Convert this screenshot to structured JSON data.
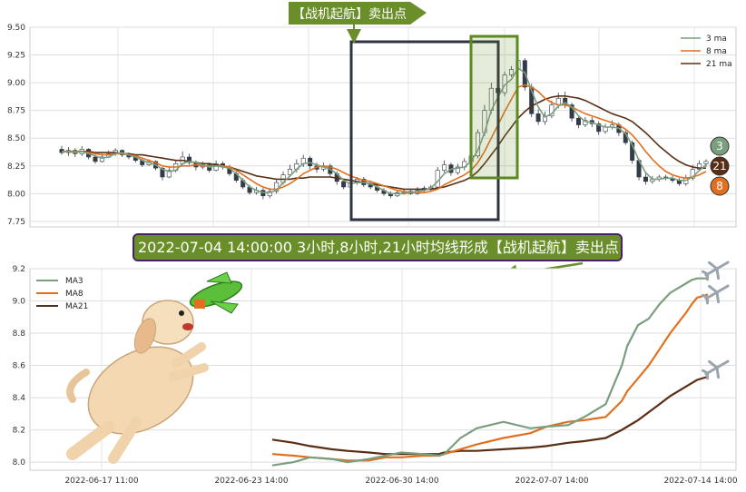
{
  "top_banner": "【战机起航】卖出点",
  "mid_banner": "2022-07-04 14:00:00 3小时,8小时,21小时均线形成【战机起航】卖出点",
  "badges": {
    "ma3": "3",
    "ma21": "21",
    "ma8": "8"
  },
  "colors": {
    "ma3": "#7a9e7e",
    "ma8": "#e07020",
    "ma21": "#5a2e14",
    "banner": "#6a8f2a",
    "up": "#7a9e7e",
    "down": "#333b48"
  },
  "chart_data": [
    {
      "type": "candlestick",
      "ylim": [
        7.7,
        9.5
      ],
      "yticks": [
        "7.75",
        "8.00",
        "8.25",
        "8.50",
        "8.75",
        "9.00",
        "9.25",
        "9.50"
      ],
      "legend": {
        "position": "top-right",
        "entries": [
          "3 ma",
          "8 ma",
          "21 ma"
        ]
      },
      "grid": true,
      "candles": [
        [
          8.4,
          8.37,
          8.43,
          8.35
        ],
        [
          8.37,
          8.39,
          8.42,
          8.34
        ],
        [
          8.39,
          8.36,
          8.41,
          8.33
        ],
        [
          8.36,
          8.4,
          8.43,
          8.34
        ],
        [
          8.4,
          8.33,
          8.41,
          8.31
        ],
        [
          8.33,
          8.29,
          8.35,
          8.27
        ],
        [
          8.29,
          8.33,
          8.36,
          8.28
        ],
        [
          8.33,
          8.36,
          8.39,
          8.32
        ],
        [
          8.36,
          8.39,
          8.41,
          8.34
        ],
        [
          8.39,
          8.35,
          8.4,
          8.33
        ],
        [
          8.35,
          8.33,
          8.37,
          8.31
        ],
        [
          8.33,
          8.3,
          8.34,
          8.28
        ],
        [
          8.3,
          8.26,
          8.32,
          8.24
        ],
        [
          8.26,
          8.29,
          8.31,
          8.25
        ],
        [
          8.29,
          8.23,
          8.3,
          8.21
        ],
        [
          8.23,
          8.15,
          8.24,
          8.12
        ],
        [
          8.15,
          8.21,
          8.24,
          8.14
        ],
        [
          8.21,
          8.27,
          8.3,
          8.19
        ],
        [
          8.27,
          8.33,
          8.38,
          8.25
        ],
        [
          8.33,
          8.28,
          8.36,
          8.26
        ],
        [
          8.28,
          8.24,
          8.3,
          8.21
        ],
        [
          8.24,
          8.26,
          8.29,
          8.22
        ],
        [
          8.26,
          8.21,
          8.28,
          8.19
        ],
        [
          8.21,
          8.27,
          8.3,
          8.2
        ],
        [
          8.27,
          8.24,
          8.29,
          8.22
        ],
        [
          8.24,
          8.18,
          8.26,
          8.16
        ],
        [
          8.18,
          8.12,
          8.2,
          8.1
        ],
        [
          8.12,
          8.06,
          8.14,
          8.04
        ],
        [
          8.06,
          8.01,
          8.08,
          7.99
        ],
        [
          8.01,
          8.03,
          8.06,
          7.99
        ],
        [
          8.03,
          7.98,
          8.05,
          7.95
        ],
        [
          7.98,
          8.02,
          8.05,
          7.96
        ],
        [
          8.02,
          8.1,
          8.13,
          8.0
        ],
        [
          8.1,
          8.17,
          8.2,
          8.08
        ],
        [
          8.17,
          8.22,
          8.26,
          8.15
        ],
        [
          8.22,
          8.27,
          8.31,
          8.19
        ],
        [
          8.27,
          8.32,
          8.35,
          8.24
        ],
        [
          8.32,
          8.25,
          8.34,
          8.22
        ],
        [
          8.25,
          8.22,
          8.28,
          8.19
        ],
        [
          8.22,
          8.25,
          8.28,
          8.2
        ],
        [
          8.25,
          8.18,
          8.27,
          8.15
        ],
        [
          8.18,
          8.11,
          8.2,
          8.08
        ],
        [
          8.11,
          8.06,
          8.13,
          8.04
        ],
        [
          8.06,
          8.1,
          8.13,
          8.05
        ],
        [
          8.1,
          8.13,
          8.15,
          8.08
        ],
        [
          8.13,
          8.08,
          8.15,
          8.06
        ],
        [
          8.08,
          8.06,
          8.11,
          8.04
        ],
        [
          8.06,
          8.03,
          8.08,
          8.01
        ],
        [
          8.03,
          8.0,
          8.05,
          7.98
        ],
        [
          8.0,
          7.98,
          8.02,
          7.96
        ],
        [
          7.98,
          8.01,
          8.03,
          7.97
        ],
        [
          8.01,
          8.02,
          8.04,
          7.99
        ],
        [
          8.02,
          8.0,
          8.04,
          7.99
        ],
        [
          8.0,
          8.03,
          8.06,
          7.99
        ],
        [
          8.03,
          8.05,
          8.07,
          8.01
        ],
        [
          8.05,
          8.06,
          8.08,
          8.02
        ],
        [
          8.06,
          8.21,
          8.24,
          8.05
        ],
        [
          8.21,
          8.26,
          8.3,
          8.19
        ],
        [
          8.26,
          8.19,
          8.28,
          8.16
        ],
        [
          8.19,
          8.24,
          8.27,
          8.17
        ],
        [
          8.24,
          8.29,
          8.32,
          8.21
        ],
        [
          8.29,
          8.34,
          8.38,
          8.27
        ],
        [
          8.34,
          8.55,
          8.58,
          8.32
        ],
        [
          8.55,
          8.75,
          8.8,
          8.52
        ],
        [
          8.75,
          8.95,
          9.0,
          8.72
        ],
        [
          8.95,
          8.91,
          8.99,
          8.88
        ],
        [
          8.91,
          9.07,
          9.1,
          8.88
        ],
        [
          9.07,
          9.12,
          9.15,
          9.05
        ],
        [
          9.12,
          9.2,
          9.23,
          9.09
        ],
        [
          9.2,
          8.96,
          9.22,
          8.93
        ],
        [
          8.96,
          8.72,
          8.99,
          8.69
        ],
        [
          8.72,
          8.65,
          8.76,
          8.62
        ],
        [
          8.65,
          8.7,
          8.74,
          8.62
        ],
        [
          8.7,
          8.8,
          8.84,
          8.68
        ],
        [
          8.8,
          8.86,
          8.91,
          8.77
        ],
        [
          8.86,
          8.8,
          8.92,
          8.77
        ],
        [
          8.8,
          8.68,
          8.82,
          8.65
        ],
        [
          8.68,
          8.62,
          8.7,
          8.59
        ],
        [
          8.62,
          8.66,
          8.69,
          8.6
        ],
        [
          8.66,
          8.63,
          8.69,
          8.6
        ],
        [
          8.63,
          8.56,
          8.65,
          8.53
        ],
        [
          8.56,
          8.6,
          8.63,
          8.54
        ],
        [
          8.6,
          8.62,
          8.66,
          8.58
        ],
        [
          8.62,
          8.55,
          8.64,
          8.52
        ],
        [
          8.55,
          8.46,
          8.57,
          8.44
        ],
        [
          8.46,
          8.3,
          8.48,
          8.27
        ],
        [
          8.3,
          8.15,
          8.32,
          8.12
        ],
        [
          8.15,
          8.11,
          8.18,
          8.08
        ],
        [
          8.11,
          8.13,
          8.16,
          8.09
        ],
        [
          8.13,
          8.15,
          8.17,
          8.11
        ],
        [
          8.15,
          8.14,
          8.17,
          8.12
        ],
        [
          8.14,
          8.12,
          8.16,
          8.1
        ],
        [
          8.12,
          8.09,
          8.14,
          8.07
        ],
        [
          8.09,
          8.14,
          8.17,
          8.07
        ],
        [
          8.14,
          8.22,
          8.26,
          8.12
        ],
        [
          8.22,
          8.27,
          8.3,
          8.2
        ],
        [
          8.27,
          8.29,
          8.31,
          8.24
        ]
      ],
      "ma3": [
        8.38,
        8.38,
        8.37,
        8.38,
        8.36,
        8.34,
        8.32,
        8.33,
        8.36,
        8.37,
        8.35,
        8.33,
        8.3,
        8.28,
        8.26,
        8.22,
        8.2,
        8.21,
        8.27,
        8.29,
        8.28,
        8.26,
        8.24,
        8.25,
        8.24,
        8.23,
        8.18,
        8.12,
        8.06,
        8.03,
        8.01,
        8.01,
        8.03,
        8.1,
        8.16,
        8.22,
        8.27,
        8.28,
        8.26,
        8.24,
        8.22,
        8.18,
        8.12,
        8.09,
        8.1,
        8.1,
        8.09,
        8.06,
        8.03,
        8.0,
        8.0,
        8.0,
        8.01,
        8.02,
        8.03,
        8.05,
        8.11,
        8.18,
        8.22,
        8.23,
        8.24,
        8.29,
        8.39,
        8.55,
        8.75,
        8.87,
        8.98,
        9.03,
        9.13,
        9.09,
        8.93,
        8.78,
        8.69,
        8.72,
        8.79,
        8.82,
        8.78,
        8.7,
        8.65,
        8.64,
        8.62,
        8.6,
        8.6,
        8.59,
        8.54,
        8.44,
        8.3,
        8.19,
        8.13,
        8.13,
        8.14,
        8.14,
        8.12,
        8.12,
        8.15,
        8.21,
        8.26
      ],
      "ma8": [
        8.38,
        8.38,
        8.38,
        8.38,
        8.37,
        8.36,
        8.35,
        8.35,
        8.36,
        8.36,
        8.35,
        8.34,
        8.32,
        8.3,
        8.28,
        8.25,
        8.24,
        8.24,
        8.25,
        8.25,
        8.26,
        8.25,
        8.25,
        8.25,
        8.25,
        8.24,
        8.21,
        8.17,
        8.13,
        8.09,
        8.06,
        8.04,
        8.04,
        8.06,
        8.09,
        8.13,
        8.18,
        8.21,
        8.24,
        8.25,
        8.24,
        8.22,
        8.19,
        8.16,
        8.14,
        8.12,
        8.11,
        8.09,
        8.07,
        8.05,
        8.03,
        8.02,
        8.01,
        8.01,
        8.01,
        8.02,
        8.04,
        8.08,
        8.11,
        8.14,
        8.17,
        8.21,
        8.28,
        8.38,
        8.5,
        8.62,
        8.74,
        8.85,
        8.96,
        8.98,
        8.96,
        8.92,
        8.86,
        8.82,
        8.8,
        8.8,
        8.78,
        8.75,
        8.72,
        8.7,
        8.68,
        8.66,
        8.64,
        8.62,
        8.58,
        8.53,
        8.46,
        8.38,
        8.31,
        8.25,
        8.2,
        8.17,
        8.15,
        8.14,
        8.15,
        8.17,
        8.2
      ],
      "ma21": [
        8.38,
        8.38,
        8.38,
        8.38,
        8.38,
        8.37,
        8.37,
        8.37,
        8.37,
        8.36,
        8.36,
        8.35,
        8.35,
        8.34,
        8.33,
        8.32,
        8.31,
        8.3,
        8.3,
        8.29,
        8.28,
        8.27,
        8.27,
        8.26,
        8.25,
        8.24,
        8.22,
        8.2,
        8.18,
        8.16,
        8.15,
        8.14,
        8.13,
        8.13,
        8.13,
        8.14,
        8.14,
        8.15,
        8.15,
        8.15,
        8.15,
        8.14,
        8.13,
        8.12,
        8.11,
        8.1,
        8.09,
        8.08,
        8.07,
        8.06,
        8.05,
        8.04,
        8.04,
        8.04,
        8.04,
        8.04,
        8.05,
        8.06,
        8.08,
        8.1,
        8.12,
        8.15,
        8.2,
        8.27,
        8.35,
        8.43,
        8.52,
        8.6,
        8.68,
        8.74,
        8.79,
        8.82,
        8.85,
        8.87,
        8.88,
        8.88,
        8.87,
        8.86,
        8.84,
        8.81,
        8.78,
        8.75,
        8.72,
        8.7,
        8.68,
        8.65,
        8.6,
        8.55,
        8.49,
        8.43,
        8.38,
        8.33,
        8.29,
        8.26,
        8.24,
        8.23,
        8.23
      ]
    },
    {
      "type": "line",
      "ylim": [
        7.95,
        9.2
      ],
      "yticks": [
        "8.0",
        "8.2",
        "8.4",
        "8.6",
        "8.8",
        "9.0",
        "9.2"
      ],
      "x_tick_labels": [
        "2022-06-17 11:00",
        "2022-06-23 14:00",
        "2022-06-30 14:00",
        "2022-07-07 14:00",
        "2022-07-14 14:00"
      ],
      "legend": {
        "position": "top-left",
        "entries": [
          "MA3",
          "MA8",
          "MA21"
        ]
      },
      "grid": true,
      "series": [
        {
          "name": "MA3",
          "x": [
            0,
            4,
            7,
            11,
            14,
            18,
            21,
            24,
            28,
            31,
            32,
            35,
            38,
            43,
            48,
            51,
            55,
            58,
            62,
            65,
            66,
            68,
            70,
            72,
            74,
            77,
            78,
            79,
            81
          ],
          "values": [
            7.98,
            8.0,
            8.03,
            8.02,
            8.0,
            8.02,
            8.04,
            8.06,
            8.05,
            8.04,
            8.05,
            8.15,
            8.21,
            8.25,
            8.21,
            8.22,
            8.23,
            8.28,
            8.36,
            8.6,
            8.72,
            8.85,
            8.89,
            8.98,
            9.05,
            9.11,
            9.13,
            9.14,
            9.14
          ]
        },
        {
          "name": "MA8",
          "x": [
            0,
            4,
            7,
            11,
            14,
            18,
            21,
            24,
            28,
            31,
            32,
            35,
            38,
            43,
            48,
            51,
            55,
            58,
            62,
            65,
            66,
            68,
            70,
            72,
            74,
            77,
            78,
            79,
            81
          ],
          "values": [
            8.05,
            8.04,
            8.03,
            8.02,
            8.01,
            8.01,
            8.03,
            8.03,
            8.04,
            8.04,
            8.05,
            8.08,
            8.11,
            8.15,
            8.18,
            8.22,
            8.25,
            8.26,
            8.28,
            8.38,
            8.44,
            8.52,
            8.6,
            8.7,
            8.8,
            8.93,
            8.98,
            9.02,
            9.04
          ]
        },
        {
          "name": "MA21",
          "x": [
            0,
            4,
            7,
            11,
            14,
            18,
            21,
            24,
            28,
            31,
            32,
            35,
            38,
            43,
            48,
            51,
            55,
            58,
            62,
            65,
            66,
            68,
            70,
            72,
            74,
            77,
            78,
            79,
            81
          ],
          "values": [
            8.14,
            8.12,
            8.1,
            8.08,
            8.07,
            8.06,
            8.05,
            8.05,
            8.05,
            8.05,
            8.06,
            8.07,
            8.07,
            8.08,
            8.09,
            8.1,
            8.12,
            8.13,
            8.15,
            8.2,
            8.22,
            8.26,
            8.31,
            8.36,
            8.41,
            8.47,
            8.49,
            8.51,
            8.53
          ]
        }
      ]
    }
  ]
}
